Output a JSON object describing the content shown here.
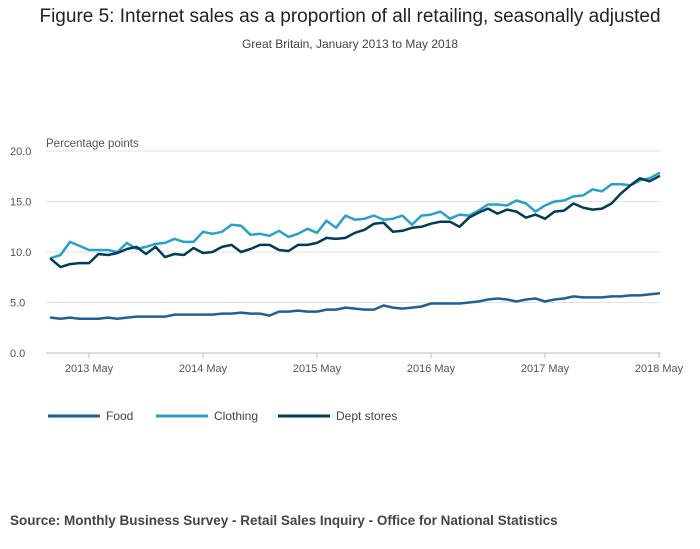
{
  "chart_data": {
    "type": "line",
    "title": "Figure 5: Internet sales as a proportion of all retailing, seasonally adjusted",
    "subtitle": "Great Britain, January 2013 to May 2018",
    "ylabel": "Percentage points",
    "xlabel": "",
    "ylim": [
      0,
      20
    ],
    "yticks": [
      "0.0",
      "5.0",
      "10.0",
      "15.0",
      "20.0"
    ],
    "ytick_values": [
      0,
      5,
      10,
      15,
      20
    ],
    "xticks": [
      {
        "label": "2013 May",
        "index": 4
      },
      {
        "label": "2014 May",
        "index": 16
      },
      {
        "label": "2015 May",
        "index": 28
      },
      {
        "label": "2016 May",
        "index": 40
      },
      {
        "label": "2017 May",
        "index": 52
      },
      {
        "label": "2018 May",
        "index": 64
      }
    ],
    "n_points": 65,
    "series": [
      {
        "name": "Food",
        "color": "#206095",
        "values": [
          3.5,
          3.4,
          3.5,
          3.4,
          3.4,
          3.4,
          3.5,
          3.4,
          3.5,
          3.6,
          3.6,
          3.6,
          3.6,
          3.8,
          3.8,
          3.8,
          3.8,
          3.8,
          3.9,
          3.9,
          4.0,
          3.9,
          3.9,
          3.7,
          4.1,
          4.1,
          4.2,
          4.1,
          4.1,
          4.3,
          4.3,
          4.5,
          4.4,
          4.3,
          4.3,
          4.7,
          4.5,
          4.4,
          4.5,
          4.6,
          4.9,
          4.9,
          4.9,
          4.9,
          5.0,
          5.1,
          5.3,
          5.4,
          5.3,
          5.1,
          5.3,
          5.4,
          5.1,
          5.3,
          5.4,
          5.6,
          5.5,
          5.5,
          5.5,
          5.6,
          5.6,
          5.7,
          5.7,
          5.8,
          5.9
        ]
      },
      {
        "name": "Clothing",
        "color": "#27a0cc",
        "values": [
          9.4,
          9.7,
          11.0,
          10.6,
          10.2,
          10.2,
          10.2,
          10.0,
          10.9,
          10.3,
          10.5,
          10.8,
          10.9,
          11.3,
          11.0,
          11.0,
          12.0,
          11.8,
          12.0,
          12.7,
          12.6,
          11.7,
          11.8,
          11.6,
          12.1,
          11.5,
          11.8,
          12.3,
          11.9,
          13.1,
          12.4,
          13.6,
          13.2,
          13.3,
          13.6,
          13.2,
          13.3,
          13.6,
          12.7,
          13.6,
          13.7,
          14.0,
          13.3,
          13.7,
          13.6,
          14.1,
          14.7,
          14.7,
          14.6,
          15.1,
          14.8,
          14.0,
          14.6,
          15.0,
          15.1,
          15.5,
          15.6,
          16.2,
          16.0,
          16.7,
          16.7,
          16.6,
          17.1,
          17.3,
          17.8
        ]
      },
      {
        "name": "Dept stores",
        "color": "#003c57",
        "values": [
          9.3,
          8.5,
          8.8,
          8.9,
          8.9,
          9.8,
          9.7,
          9.9,
          10.3,
          10.5,
          9.8,
          10.5,
          9.5,
          9.8,
          9.7,
          10.4,
          9.9,
          10.0,
          10.5,
          10.7,
          10.0,
          10.3,
          10.7,
          10.7,
          10.2,
          10.1,
          10.7,
          10.7,
          10.9,
          11.4,
          11.3,
          11.4,
          11.9,
          12.2,
          12.8,
          12.9,
          12.0,
          12.1,
          12.4,
          12.5,
          12.8,
          13.0,
          13.0,
          12.5,
          13.4,
          13.9,
          14.3,
          13.8,
          14.2,
          14.0,
          13.4,
          13.7,
          13.3,
          14.0,
          14.1,
          14.8,
          14.4,
          14.2,
          14.3,
          14.8,
          15.8,
          16.6,
          17.3,
          17.0,
          17.5
        ]
      }
    ]
  },
  "source": "Source: Monthly Business Survey - Retail Sales Inquiry - Office for National Statistics"
}
